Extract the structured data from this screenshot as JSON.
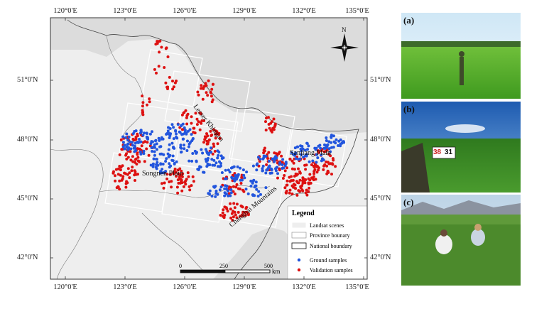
{
  "map": {
    "axes": {
      "top_ticks": [
        "120°0'E",
        "123°0'E",
        "126°0'E",
        "129°0'E",
        "132°0'E",
        "135°0'E"
      ],
      "bottom_ticks": [
        "120°0'E",
        "123°0'E",
        "126°0'E",
        "129°0'E",
        "132°0'E",
        "135°0'E"
      ],
      "left_ticks": [
        "51°0'N",
        "48°0'N",
        "45°0'N",
        "42°0'N"
      ],
      "right_ticks": [
        "51°0'N",
        "48°0'N",
        "45°0'N",
        "42°0'N"
      ]
    },
    "labels": {
      "north": "N",
      "xiao": "Lesser Khingan",
      "sanjiang": "Sanjiang Plain",
      "songnen": "Songnen Plain",
      "changbai": "Changbai Mountains"
    },
    "legend": {
      "title": "Legend",
      "items": [
        "Landsat scenes",
        "Province bounary",
        "National boundary",
        "Ground samples",
        "Validation samples"
      ],
      "colors": {
        "ground": "#2255dd",
        "validation": "#dd1111"
      }
    },
    "scalebar": {
      "ticks": [
        "0",
        "250",
        "500"
      ],
      "unit": "km"
    }
  },
  "photos": [
    {
      "label": "(a)"
    },
    {
      "label": "(b)",
      "sign_left": "38",
      "sign_right": "31"
    },
    {
      "label": "(c)"
    }
  ]
}
